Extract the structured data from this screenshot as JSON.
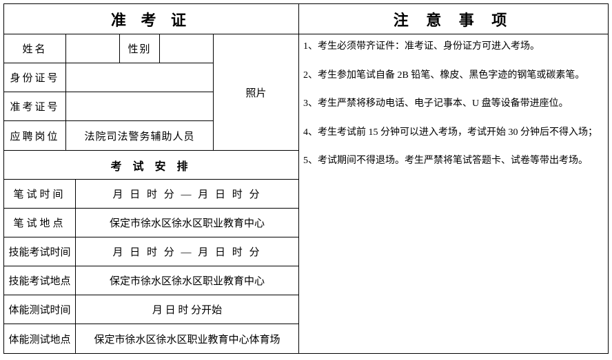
{
  "left": {
    "title": "准 考 证",
    "labels": {
      "name": "姓名",
      "gender": "性别",
      "id_number": "身份证号",
      "exam_number": "准考证号",
      "position": "应聘岗位",
      "photo": "照片"
    },
    "values": {
      "name": "",
      "gender": "",
      "id_number": "",
      "exam_number": "",
      "position": "法院司法警务辅助人员"
    },
    "exam_section_title": "考 试 安 排",
    "exam_rows": [
      {
        "label": "笔试时间",
        "value": "月 日 时 分 — 月 日 时 分",
        "label_spaced": true,
        "value_spaced": true
      },
      {
        "label": "笔试地点",
        "value": "保定市徐水区徐水区职业教育中心",
        "label_spaced": true,
        "value_spaced": false
      },
      {
        "label": "技能考试时间",
        "value": "月 日 时 分 — 月 日 时 分",
        "label_spaced": false,
        "value_spaced": true
      },
      {
        "label": "技能考试地点",
        "value": "保定市徐水区徐水区职业教育中心",
        "label_spaced": false,
        "value_spaced": false
      },
      {
        "label": "体能测试时间",
        "value": "月  日  时  分开始",
        "label_spaced": false,
        "value_spaced": false
      },
      {
        "label": "体能测试地点",
        "value": "保定市徐水区徐水区职业教育中心体育场",
        "label_spaced": false,
        "value_spaced": false
      }
    ]
  },
  "right": {
    "title": "注 意 事 项",
    "notes": [
      "1、考生必须带齐证件：准考证、身份证方可进入考场。",
      "2、考生参加笔试自备 2B 铅笔、橡皮、黑色字迹的钢笔或碳素笔。",
      "3、考生严禁将移动电话、电子记事本、U 盘等设备带进座位。",
      "4、考生考试前 15 分钟可以进入考场，考试开始 30 分钟后不得入场；",
      "5、考试期间不得退场。考生严禁将笔试答题卡、试卷等带出考场。"
    ]
  }
}
